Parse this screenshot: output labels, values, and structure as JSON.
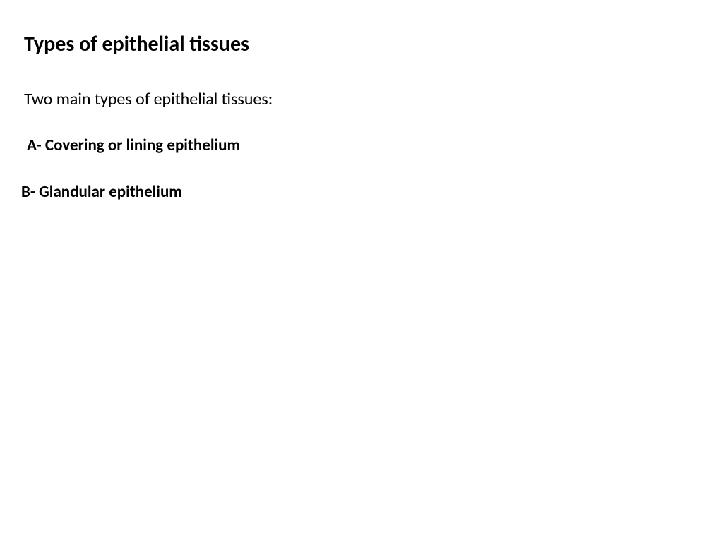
{
  "slide": {
    "title": "Types of epithelial  tissues",
    "subtitle": "Two main types of epithelial  tissues:",
    "item_a": "A- Covering or lining epithelium",
    "item_b": "B- Glandular epithelium",
    "background_color": "#ffffff",
    "text_color": "#000000",
    "title_fontsize": 30,
    "title_fontweight": 700,
    "subtitle_fontsize": 24,
    "subtitle_fontweight": 400,
    "item_fontsize": 23,
    "item_fontweight": 700
  }
}
